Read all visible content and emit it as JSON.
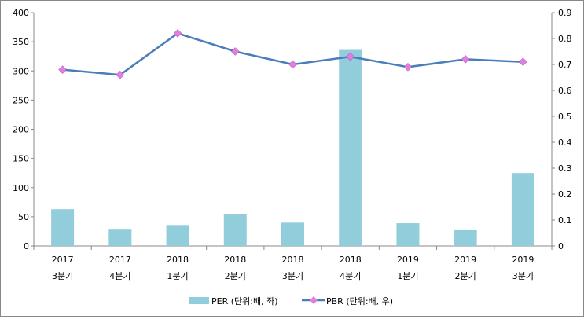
{
  "chart_data": {
    "type": "bar+line",
    "categories": [
      [
        "2017",
        "3분기"
      ],
      [
        "2017",
        "4분기"
      ],
      [
        "2018",
        "1분기"
      ],
      [
        "2018",
        "2분기"
      ],
      [
        "2018",
        "3분기"
      ],
      [
        "2018",
        "4분기"
      ],
      [
        "2019",
        "1분기"
      ],
      [
        "2019",
        "2분기"
      ],
      [
        "2019",
        "3분기"
      ]
    ],
    "series": [
      {
        "name": "PER (단위:배, 좌)",
        "type": "bar",
        "axis": "left",
        "color": "#92CDDC",
        "values": [
          63,
          28,
          36,
          54,
          40,
          336,
          39,
          27,
          125
        ]
      },
      {
        "name": "PBR (단위:배, 우)",
        "type": "line",
        "axis": "right",
        "color": "#4A7EBB",
        "marker_color": "#E07FE0",
        "values": [
          0.68,
          0.66,
          0.82,
          0.75,
          0.7,
          0.73,
          0.69,
          0.72,
          0.71
        ]
      }
    ],
    "y_left": {
      "range": [
        0,
        400
      ],
      "ticks": [
        "0",
        "50",
        "100",
        "150",
        "200",
        "250",
        "300",
        "350",
        "400"
      ]
    },
    "y_right": {
      "range": [
        0,
        0.9
      ],
      "ticks": [
        "0",
        "0.1",
        "0.2",
        "0.3",
        "0.4",
        "0.5",
        "0.6",
        "0.7",
        "0.8",
        "0.9"
      ]
    },
    "legend": "bottom",
    "grid": false
  }
}
